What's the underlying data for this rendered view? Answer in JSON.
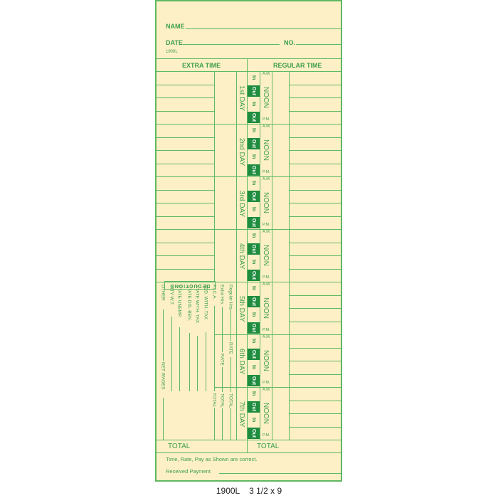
{
  "header": {
    "name_label": "NAME",
    "date_label": "DATE",
    "no_label": "NO.",
    "form_code": "1900L"
  },
  "sections": {
    "extra_time": "EXTRA TIME",
    "regular_time": "REGULAR TIME"
  },
  "days": [
    "1st DAY",
    "2nd DAY",
    "3rd DAY",
    "4th DAY",
    "5th DAY",
    "6th DAY",
    "7th DAY"
  ],
  "punch": {
    "in": "In",
    "out": "Out",
    "am": "A.M.",
    "pm": "P.M.",
    "noon": "NOON"
  },
  "deductions": {
    "title": "DEDUCTIONS",
    "labels": [
      "Regular Hrs.",
      "Extra Hrs.",
      "F.I.C.A.",
      "FED. WITH. TAX",
      "STATE WITH. TAX",
      "STATE DIS. BEN.",
      "STATE UNEMP.",
      "CITY W.T.",
      "OTHER"
    ],
    "rate": "RATE",
    "total": "TOTAL",
    "net_wages": "NET WAGES"
  },
  "totals": {
    "left": "TOTAL",
    "right": "TOTAL"
  },
  "footer": {
    "statement": "Time, Rate, Pay as Shown are correct.",
    "received": "Received Payment"
  },
  "caption": "1900L    3 1/2 x 9",
  "colors": {
    "card": "#fdf0c6",
    "ink": "#3d9f4c",
    "punch_out": "#1f8c3f"
  }
}
